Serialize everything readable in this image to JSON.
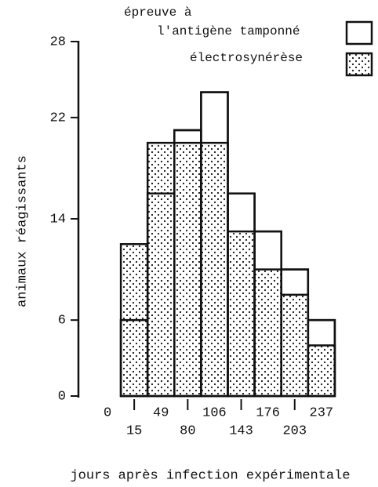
{
  "chart_data": {
    "type": "bar",
    "x_label": "jours après infection expérimentale",
    "y_label": "animaux réagissants",
    "categories": [
      "0",
      "15",
      "49",
      "80",
      "106",
      "143",
      "176",
      "203",
      "237"
    ],
    "series": [
      {
        "name": "épreuve à\nl'antigène tamponné",
        "color": "#ffffff",
        "values": [
          0,
          6,
          16,
          21,
          24,
          16,
          13,
          10,
          6
        ]
      },
      {
        "name": "électrosynérèse",
        "color": "dotted",
        "values": [
          0,
          12,
          20,
          20,
          20,
          13,
          10,
          8,
          4
        ]
      }
    ],
    "ylim": [
      0,
      28
    ],
    "yticks": [
      0,
      6,
      14,
      22,
      28
    ]
  }
}
